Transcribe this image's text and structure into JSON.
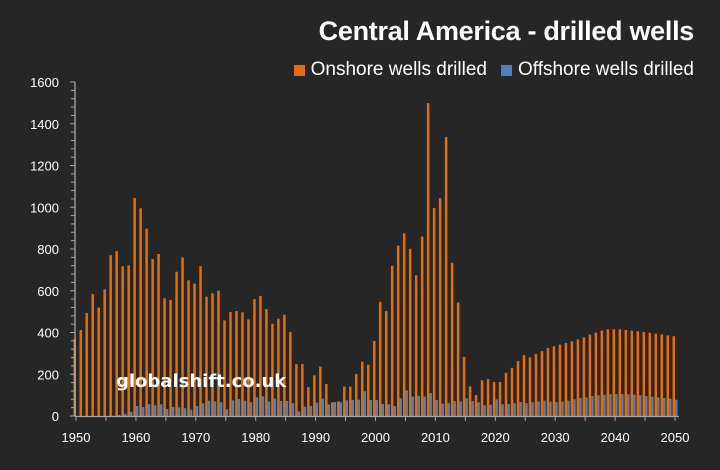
{
  "chart_data": {
    "type": "bar",
    "title": "Central America - drilled wells",
    "xlabel": "",
    "ylabel": "",
    "ylim": [
      0,
      1600
    ],
    "xlim": [
      1950,
      2050
    ],
    "y_ticks": [
      0,
      200,
      400,
      600,
      800,
      1000,
      1200,
      1400,
      1600
    ],
    "x_ticks": [
      1950,
      1960,
      1970,
      1980,
      1990,
      2000,
      2010,
      2020,
      2030,
      2040,
      2050
    ],
    "grid": false,
    "legend_position": "top-right",
    "watermark": "globalshift.co.uk",
    "colors": {
      "onshore": "#E46C0A",
      "offshore": "#4F81BD",
      "background": "#262626",
      "axis": "#A6A6A6"
    },
    "x": [
      1950,
      1951,
      1952,
      1953,
      1954,
      1955,
      1956,
      1957,
      1958,
      1959,
      1960,
      1961,
      1962,
      1963,
      1964,
      1965,
      1966,
      1967,
      1968,
      1969,
      1970,
      1971,
      1972,
      1973,
      1974,
      1975,
      1976,
      1977,
      1978,
      1979,
      1980,
      1981,
      1982,
      1983,
      1984,
      1985,
      1986,
      1987,
      1988,
      1989,
      1990,
      1991,
      1992,
      1993,
      1994,
      1995,
      1996,
      1997,
      1998,
      1999,
      2000,
      2001,
      2002,
      2003,
      2004,
      2005,
      2006,
      2007,
      2008,
      2009,
      2010,
      2011,
      2012,
      2013,
      2014,
      2015,
      2016,
      2017,
      2018,
      2019,
      2020,
      2021,
      2022,
      2023,
      2024,
      2025,
      2026,
      2027,
      2028,
      2029,
      2030,
      2031,
      2032,
      2033,
      2034,
      2035,
      2036,
      2037,
      2038,
      2039,
      2040,
      2041,
      2042,
      2043,
      2044,
      2045,
      2046,
      2047,
      2048,
      2049,
      2050
    ],
    "series": [
      {
        "name": "Onshore wells drilled",
        "color": "#E46C0A",
        "values": [
          370,
          412,
          493,
          584,
          519,
          607,
          770,
          790,
          717,
          722,
          1044,
          995,
          897,
          752,
          776,
          564,
          556,
          691,
          760,
          650,
          634,
          718,
          572,
          588,
          600,
          458,
          498,
          503,
          497,
          463,
          560,
          575,
          512,
          442,
          466,
          485,
          402,
          248,
          249,
          139,
          195,
          237,
          153,
          65,
          70,
          141,
          141,
          201,
          260,
          246,
          359,
          547,
          503,
          720,
          816,
          875,
          801,
          674,
          860,
          1499,
          996,
          1043,
          1336,
          734,
          544,
          283,
          142,
          100,
          171,
          177,
          163,
          163,
          207,
          230,
          263,
          292,
          281,
          297,
          311,
          326,
          334,
          342,
          350,
          358,
          367,
          377,
          390,
          399,
          409,
          415,
          415,
          415,
          412,
          409,
          406,
          402,
          399,
          394,
          391,
          386,
          382
        ]
      },
      {
        "name": "Offshore wells drilled",
        "color": "#4F81BD",
        "values": [
          0,
          0,
          0,
          0,
          0,
          0,
          2,
          5,
          10,
          20,
          48,
          43,
          57,
          51,
          56,
          34,
          43,
          41,
          37,
          30,
          48,
          61,
          73,
          70,
          66,
          32,
          75,
          81,
          73,
          66,
          89,
          94,
          69,
          83,
          72,
          72,
          61,
          22,
          45,
          48,
          64,
          83,
          56,
          67,
          66,
          75,
          77,
          78,
          118,
          77,
          77,
          57,
          56,
          48,
          85,
          123,
          93,
          96,
          93,
          110,
          77,
          59,
          61,
          72,
          70,
          85,
          72,
          66,
          51,
          54,
          80,
          56,
          57,
          61,
          67,
          61,
          66,
          70,
          73,
          69,
          67,
          69,
          73,
          80,
          86,
          89,
          96,
          99,
          102,
          104,
          105,
          105,
          104,
          102,
          99,
          96,
          93,
          89,
          86,
          83,
          78
        ]
      }
    ]
  }
}
